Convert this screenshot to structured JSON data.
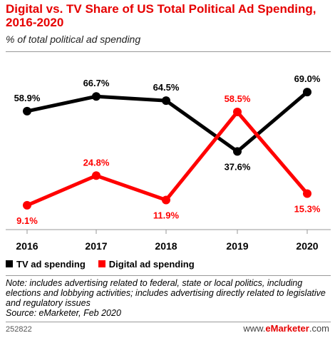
{
  "chart_data": {
    "type": "line",
    "title": "Digital vs. TV Share of US Total Political Ad Spending, 2016-2020",
    "subtitle": "% of total political ad spending",
    "x": [
      "2016",
      "2017",
      "2018",
      "2019",
      "2020"
    ],
    "series": [
      {
        "name": "TV ad spending",
        "color": "#000000",
        "values": [
          58.9,
          66.7,
          64.5,
          37.6,
          69.0
        ],
        "labels": [
          "58.9%",
          "66.7%",
          "64.5%",
          "37.6%",
          "69.0%"
        ]
      },
      {
        "name": "Digital ad spending",
        "color": "#ff0000",
        "values": [
          9.1,
          24.8,
          11.9,
          58.5,
          15.3
        ],
        "labels": [
          "9.1%",
          "24.8%",
          "11.9%",
          "58.5%",
          "15.3%"
        ]
      }
    ],
    "ylim": [
      0,
      80
    ],
    "grid": false,
    "legend": "bottom-left"
  },
  "note": "Note: includes advertising related to federal, state or local politics, including elections and lobbying activities; includes advertising directly related to legislative and regulatory issues",
  "source": "Source: eMarketer, Feb 2020",
  "chart_id": "252822",
  "brand": {
    "prefix": "www.",
    "name": "eMarketer",
    "suffix": ".com"
  }
}
